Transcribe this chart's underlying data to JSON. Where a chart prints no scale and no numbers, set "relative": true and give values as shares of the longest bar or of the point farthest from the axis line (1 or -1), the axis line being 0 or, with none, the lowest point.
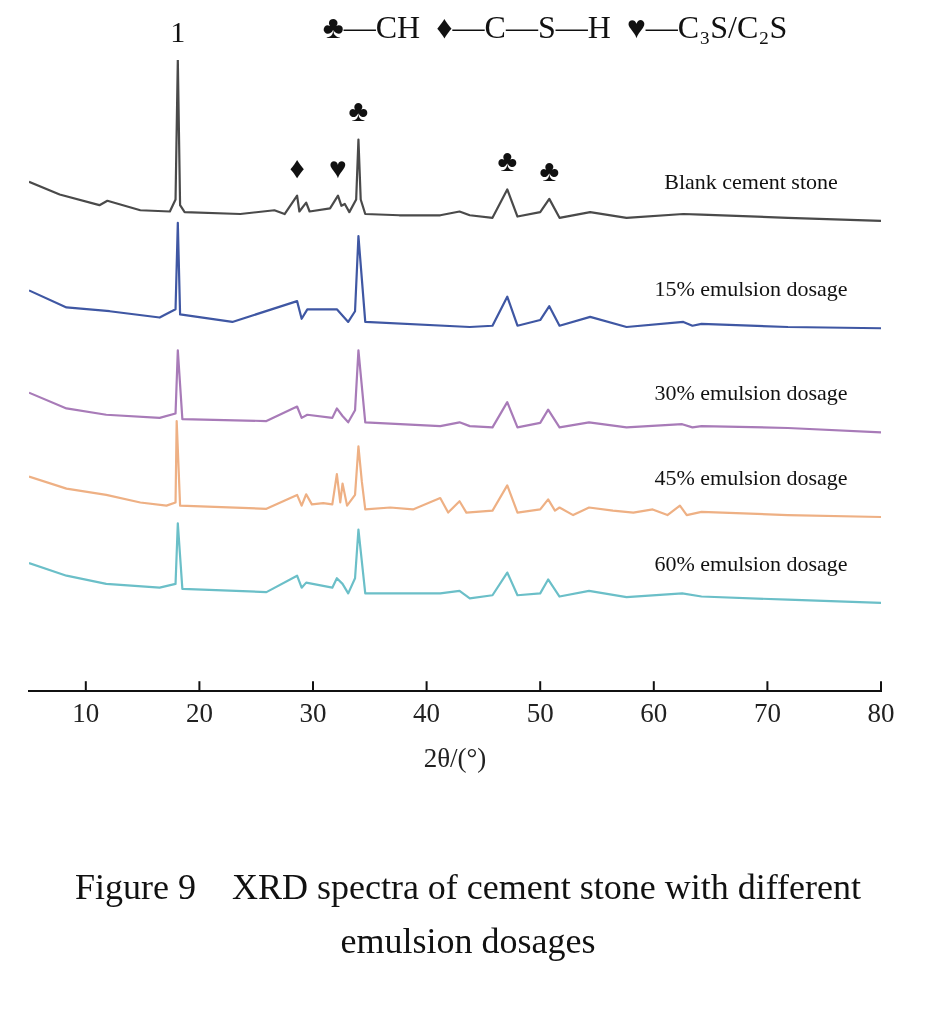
{
  "chart_data": {
    "type": "line",
    "title": "Figure 9　XRD spectra of cement stone with different emulsion dosages",
    "xlabel": "2θ/(°)",
    "relative": true,
    "xlim": [
      5,
      80
    ],
    "xticks": [
      10,
      20,
      30,
      40,
      50,
      60,
      70,
      80
    ],
    "tick_labels": "x",
    "grid": false,
    "legend": false,
    "marker": "none",
    "line_style": "solid",
    "annotations": [
      "♣—CH  ♦—C—S—H  ♥—C₃S/C₂S",
      {
        "text": "1",
        "x": 18.1,
        "y": 1.0
      },
      {
        "text": "♣",
        "x": 34.0,
        "y": 0.874
      },
      {
        "text": "♦",
        "x": 28.6,
        "y": 0.785
      },
      {
        "text": "♥",
        "x": 32.2,
        "y": 0.785
      },
      {
        "text": "♣",
        "x": 47.1,
        "y": 0.795
      },
      {
        "text": "♣",
        "x": 50.8,
        "y": 0.78
      }
    ],
    "series": [
      {
        "name": "Blank cement stone",
        "color": "#4a4a4a",
        "x": [
          5,
          7.7,
          11.2,
          11.9,
          14.8,
          17.4,
          17.9,
          18.1,
          18.3,
          18.7,
          23.6,
          26.6,
          27.5,
          28.6,
          28.8,
          29.4,
          29.7,
          31.5,
          32.2,
          32.5,
          32.8,
          33.2,
          33.8,
          34.0,
          34.2,
          34.6,
          37.6,
          41.2,
          42.9,
          43.8,
          45.8,
          47.1,
          48.0,
          50.0,
          50.8,
          51.7,
          54.4,
          57.6,
          62.6,
          64.2,
          71.8,
          80
        ],
        "values": [
          0.807,
          0.787,
          0.77,
          0.777,
          0.762,
          0.76,
          0.779,
          1.0,
          0.77,
          0.759,
          0.756,
          0.762,
          0.756,
          0.785,
          0.76,
          0.774,
          0.76,
          0.765,
          0.785,
          0.769,
          0.772,
          0.759,
          0.779,
          0.874,
          0.779,
          0.756,
          0.754,
          0.754,
          0.76,
          0.754,
          0.75,
          0.795,
          0.752,
          0.759,
          0.78,
          0.75,
          0.759,
          0.75,
          0.756,
          0.755,
          0.75,
          0.745
        ]
      },
      {
        "name": "15% emulsion dosage",
        "color": "#3f57a3",
        "x": [
          5,
          8.3,
          12.1,
          16.5,
          17.9,
          18.1,
          18.3,
          22.9,
          28.6,
          29.0,
          29.5,
          32.1,
          33.1,
          33.7,
          34.0,
          34.6,
          43.8,
          45.8,
          47.1,
          48.0,
          50.0,
          50.8,
          51.7,
          54.4,
          57.6,
          62.6,
          63.4,
          64.2,
          71.8,
          80
        ],
        "values": [
          0.635,
          0.608,
          0.602,
          0.592,
          0.605,
          0.742,
          0.597,
          0.585,
          0.618,
          0.59,
          0.605,
          0.605,
          0.585,
          0.602,
          0.721,
          0.585,
          0.577,
          0.579,
          0.625,
          0.579,
          0.588,
          0.61,
          0.579,
          0.593,
          0.577,
          0.585,
          0.579,
          0.582,
          0.577,
          0.575
        ]
      },
      {
        "name": "30% emulsion dosage",
        "color": "#a87bb8",
        "x": [
          5,
          8.3,
          11.8,
          16.5,
          17.9,
          18.1,
          18.5,
          25.9,
          28.6,
          29.0,
          29.5,
          31.7,
          32.1,
          32.6,
          33.1,
          33.7,
          34.0,
          34.6,
          41.2,
          42.9,
          43.8,
          45.8,
          47.1,
          48.0,
          50.0,
          50.7,
          51.7,
          54.3,
          57.6,
          62.5,
          63.4,
          64.2,
          71.8,
          80
        ],
        "values": [
          0.473,
          0.448,
          0.438,
          0.433,
          0.44,
          0.54,
          0.431,
          0.428,
          0.451,
          0.433,
          0.438,
          0.433,
          0.448,
          0.436,
          0.426,
          0.445,
          0.54,
          0.426,
          0.42,
          0.426,
          0.42,
          0.418,
          0.458,
          0.418,
          0.425,
          0.446,
          0.418,
          0.426,
          0.418,
          0.423,
          0.418,
          0.42,
          0.417,
          0.41
        ]
      },
      {
        "name": "45% emulsion dosage",
        "color": "#eeb084",
        "x": [
          5,
          8.3,
          11.8,
          14.8,
          17.1,
          17.9,
          18.0,
          18.3,
          25.9,
          28.6,
          29.0,
          29.4,
          29.9,
          30.9,
          31.7,
          32.1,
          32.4,
          32.6,
          33.0,
          33.7,
          34.0,
          34.3,
          34.6,
          36.8,
          38.8,
          41.2,
          41.9,
          42.9,
          43.5,
          45.8,
          47.1,
          48.0,
          50.0,
          50.7,
          51.3,
          51.7,
          52.9,
          54.3,
          56.4,
          58.2,
          59.9,
          61.2,
          62.3,
          62.9,
          64.2,
          71.8,
          80
        ],
        "values": [
          0.34,
          0.321,
          0.311,
          0.299,
          0.294,
          0.299,
          0.428,
          0.294,
          0.289,
          0.311,
          0.294,
          0.312,
          0.296,
          0.298,
          0.296,
          0.344,
          0.299,
          0.329,
          0.294,
          0.311,
          0.388,
          0.332,
          0.288,
          0.291,
          0.288,
          0.306,
          0.283,
          0.301,
          0.283,
          0.286,
          0.326,
          0.283,
          0.288,
          0.304,
          0.286,
          0.291,
          0.279,
          0.291,
          0.286,
          0.283,
          0.288,
          0.279,
          0.294,
          0.279,
          0.284,
          0.279,
          0.276
        ]
      },
      {
        "name": "60% emulsion dosage",
        "color": "#6bbfc8",
        "x": [
          5,
          8.3,
          11.8,
          16.5,
          17.9,
          18.1,
          18.5,
          25.9,
          28.6,
          29.0,
          29.4,
          31.7,
          32.1,
          32.6,
          33.1,
          33.7,
          34.0,
          34.6,
          41.2,
          42.9,
          43.8,
          45.8,
          47.1,
          48.0,
          50.0,
          50.7,
          51.7,
          54.3,
          57.6,
          62.5,
          64.2,
          71.8,
          80
        ],
        "values": [
          0.203,
          0.183,
          0.17,
          0.164,
          0.17,
          0.266,
          0.162,
          0.157,
          0.183,
          0.164,
          0.172,
          0.164,
          0.179,
          0.17,
          0.155,
          0.179,
          0.256,
          0.155,
          0.155,
          0.159,
          0.147,
          0.152,
          0.188,
          0.152,
          0.155,
          0.177,
          0.15,
          0.159,
          0.149,
          0.155,
          0.15,
          0.145,
          0.14
        ]
      }
    ]
  }
}
